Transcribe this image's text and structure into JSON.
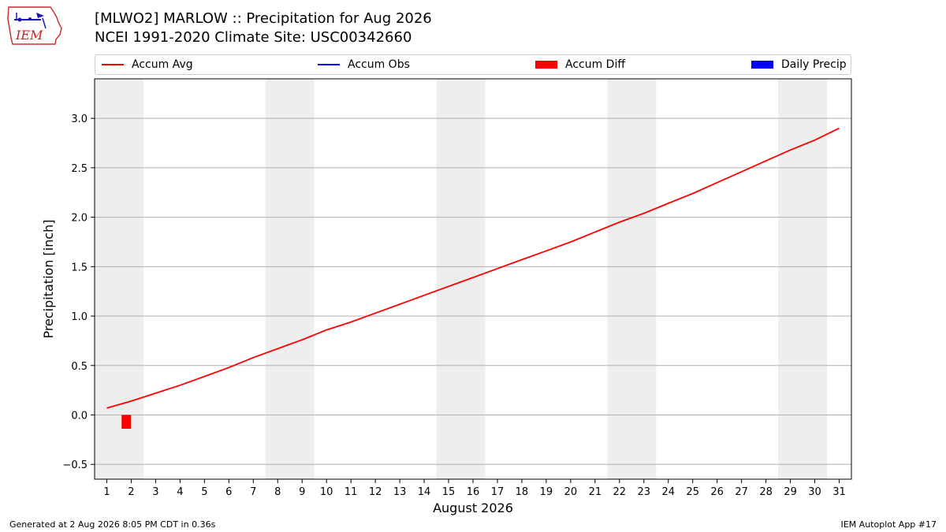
{
  "header": {
    "title_line1": "[MLWO2] MARLOW :: Precipitation for Aug 2026",
    "title_line2": "NCEI 1991-2020 Climate Site: USC00342660",
    "logo_text": "IEM"
  },
  "legend": [
    {
      "label": "Accum Avg",
      "kind": "line",
      "color": "#ff0000"
    },
    {
      "label": "Accum Obs",
      "kind": "line",
      "color": "#0000ff"
    },
    {
      "label": "Accum Diff",
      "kind": "bar",
      "color": "#ff0000"
    },
    {
      "label": "Daily Precip",
      "kind": "bar",
      "color": "#0000ff"
    }
  ],
  "footer": {
    "left": "Generated at 2 Aug 2026 8:05 PM CDT in 0.36s",
    "right": "IEM Autoplot App #17"
  },
  "chart_data": {
    "type": "line",
    "title": "[MLWO2] MARLOW :: Precipitation for Aug 2026",
    "subtitle": "NCEI 1991-2020 Climate Site: USC00342660",
    "xlabel": "August 2026",
    "ylabel": "Precipitation [inch]",
    "xlim": [
      0.5,
      31.5
    ],
    "ylim": [
      -0.65,
      3.4
    ],
    "x_ticks": [
      1,
      2,
      3,
      4,
      5,
      6,
      7,
      8,
      9,
      10,
      11,
      12,
      13,
      14,
      15,
      16,
      17,
      18,
      19,
      20,
      21,
      22,
      23,
      24,
      25,
      26,
      27,
      28,
      29,
      30,
      31
    ],
    "y_ticks": [
      -0.5,
      0.0,
      0.5,
      1.0,
      1.5,
      2.0,
      2.5,
      3.0
    ],
    "y_tick_labels": [
      "−0.5",
      "0.0",
      "0.5",
      "1.0",
      "1.5",
      "2.0",
      "2.5",
      "3.0"
    ],
    "grid": "horizontal",
    "legend_position": "top",
    "weekend_bands": [
      [
        0.5,
        2.5
      ],
      [
        7.5,
        9.5
      ],
      [
        14.5,
        16.5
      ],
      [
        21.5,
        23.5
      ],
      [
        28.5,
        30.5
      ]
    ],
    "series": [
      {
        "name": "Accum Avg",
        "type": "line",
        "color": "#ff0000",
        "x": [
          1,
          2,
          3,
          4,
          5,
          6,
          7,
          8,
          9,
          10,
          11,
          12,
          13,
          14,
          15,
          16,
          17,
          18,
          19,
          20,
          21,
          22,
          23,
          24,
          25,
          26,
          27,
          28,
          29,
          30,
          31
        ],
        "values": [
          0.07,
          0.14,
          0.22,
          0.3,
          0.39,
          0.48,
          0.58,
          0.67,
          0.76,
          0.86,
          0.94,
          1.03,
          1.12,
          1.21,
          1.3,
          1.39,
          1.48,
          1.57,
          1.66,
          1.75,
          1.85,
          1.95,
          2.04,
          2.14,
          2.24,
          2.35,
          2.46,
          2.57,
          2.68,
          2.78,
          2.9
        ]
      },
      {
        "name": "Accum Diff",
        "type": "bar",
        "color": "#ff0000",
        "x": [
          1.8
        ],
        "values": [
          -0.14
        ]
      }
    ]
  }
}
